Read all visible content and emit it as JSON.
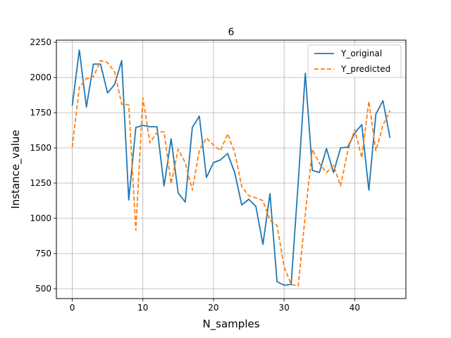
{
  "chart_data": {
    "type": "line",
    "title": "6",
    "xlabel": "N_samples",
    "ylabel": "Instance_value",
    "xlim": [
      -2.25,
      47.25
    ],
    "ylim": [
      430,
      2265
    ],
    "xticks": [
      0,
      10,
      20,
      30,
      40
    ],
    "xtick_labels": [
      "0",
      "10",
      "20",
      "30",
      "40"
    ],
    "yticks": [
      500,
      750,
      1000,
      1250,
      1500,
      1750,
      2000,
      2250
    ],
    "ytick_labels": [
      "500",
      "750",
      "1000",
      "1250",
      "1500",
      "1750",
      "2000",
      "2250"
    ],
    "grid": true,
    "legend_position": "top-right",
    "x": [
      0,
      1,
      2,
      3,
      4,
      5,
      6,
      7,
      8,
      9,
      10,
      11,
      12,
      13,
      14,
      15,
      16,
      17,
      18,
      19,
      20,
      21,
      22,
      23,
      24,
      25,
      26,
      27,
      28,
      29,
      30,
      31,
      32,
      33,
      34,
      35,
      36,
      37,
      38,
      39,
      40,
      41,
      42,
      43,
      44,
      45
    ],
    "series": [
      {
        "name": "Y_original",
        "color": "#1f77b4",
        "dash": "solid",
        "values": [
          1800,
          2195,
          1790,
          2095,
          2095,
          1890,
          1950,
          2120,
          1130,
          1645,
          1660,
          1650,
          1650,
          1230,
          1565,
          1180,
          1115,
          1645,
          1725,
          1290,
          1395,
          1415,
          1460,
          1325,
          1095,
          1135,
          1085,
          815,
          1175,
          550,
          525,
          530,
          1255,
          2030,
          1340,
          1325,
          1495,
          1325,
          1500,
          1505,
          1605,
          1665,
          1200,
          1740,
          1835,
          1570
        ]
      },
      {
        "name": "Y_predicted",
        "color": "#ff7f0e",
        "dash": "dashed",
        "values": [
          1505,
          1930,
          1990,
          2005,
          2120,
          2105,
          2040,
          1810,
          1805,
          915,
          1855,
          1535,
          1610,
          1615,
          1245,
          1490,
          1395,
          1200,
          1485,
          1570,
          1520,
          1480,
          1600,
          1470,
          1225,
          1160,
          1145,
          1125,
          985,
          950,
          655,
          530,
          520,
          1025,
          1490,
          1390,
          1325,
          1375,
          1230,
          1475,
          1630,
          1430,
          1830,
          1480,
          1660,
          1765
        ]
      }
    ]
  }
}
